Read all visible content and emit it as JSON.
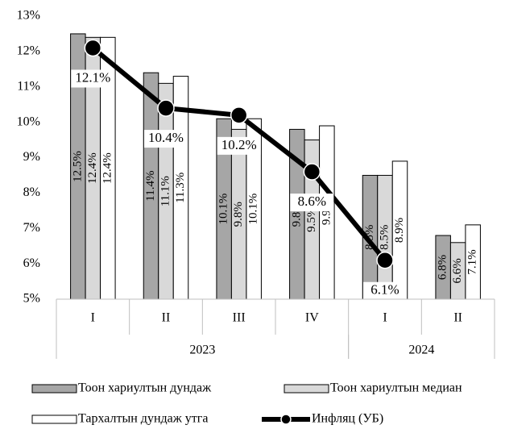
{
  "chart_data": {
    "type": "bar",
    "categories": [
      "I",
      "II",
      "III",
      "IV",
      "I",
      "II"
    ],
    "groups": [
      {
        "label": "2023",
        "span": 4
      },
      {
        "label": "2024",
        "span": 2
      }
    ],
    "series": [
      {
        "name": "Тоон хариултын дундаж",
        "color": "#a6a6a6",
        "values": [
          12.5,
          11.4,
          10.1,
          9.8,
          8.5,
          6.8
        ],
        "value_labels": [
          "12.5%",
          "11.4%",
          "10.1%",
          "9.8%",
          "8.5%",
          "6.8%"
        ]
      },
      {
        "name": "Тоон хариултын медиан",
        "color": "#d9d9d9",
        "values": [
          12.4,
          11.1,
          9.8,
          9.5,
          8.5,
          6.6
        ],
        "value_labels": [
          "12.4%",
          "11.1%",
          "9.8%",
          "9.5%",
          "8.5%",
          "6.6%"
        ]
      },
      {
        "name": "Тархалтын дундаж утга",
        "color": "#ffffff",
        "values": [
          12.4,
          11.3,
          10.1,
          9.9,
          8.9,
          7.1
        ],
        "value_labels": [
          "12.4%",
          "11.3%",
          "10.1%",
          "9.9%",
          "8.9%",
          "7.1%"
        ]
      },
      {
        "name": "Инфляц (УБ)",
        "color": "#000000",
        "type": "line",
        "values": [
          12.1,
          10.4,
          10.2,
          8.6,
          6.1,
          null
        ],
        "value_labels": [
          "12.1%",
          "10.4%",
          "10.2%",
          "8.6%",
          "6.1%",
          null
        ]
      }
    ],
    "ylim": [
      5,
      13
    ],
    "yticks": [
      {
        "value": 5,
        "label": "5%"
      },
      {
        "value": 6,
        "label": "6%"
      },
      {
        "value": 7,
        "label": "7%"
      },
      {
        "value": 8,
        "label": "8%"
      },
      {
        "value": 9,
        "label": "9%"
      },
      {
        "value": 10,
        "label": "10%"
      },
      {
        "value": 11,
        "label": "11%"
      },
      {
        "value": 12,
        "label": "12%"
      },
      {
        "value": 13,
        "label": "13%"
      }
    ],
    "grid": false
  }
}
